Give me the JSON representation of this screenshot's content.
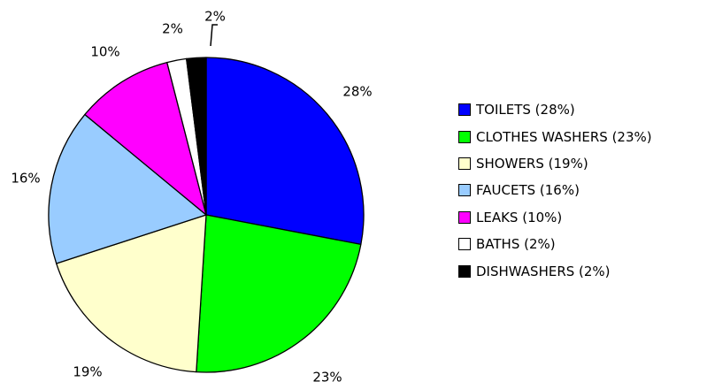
{
  "chart_data": {
    "type": "pie",
    "slices": [
      {
        "legend": "TOILETS (28%)",
        "value": 28,
        "label": "28%",
        "color": "#0000ff"
      },
      {
        "legend": "CLOTHES WASHERS (23%)",
        "value": 23,
        "label": "23%",
        "color": "#00ff00"
      },
      {
        "legend": "SHOWERS (19%)",
        "value": 19,
        "label": "19%",
        "color": "#ffffcc"
      },
      {
        "legend": "FAUCETS (16%)",
        "value": 16,
        "label": "16%",
        "color": "#99ccff"
      },
      {
        "legend": "LEAKS (10%)",
        "value": 10,
        "label": "10%",
        "color": "#ff00ff"
      },
      {
        "legend": "BATHS (2%)",
        "value": 2,
        "label": "2%",
        "color": "#ffffff"
      },
      {
        "legend": "DISHWASHERS (2%)",
        "value": 2,
        "label": "2%",
        "color": "#000000"
      }
    ],
    "legend_position": "right"
  }
}
